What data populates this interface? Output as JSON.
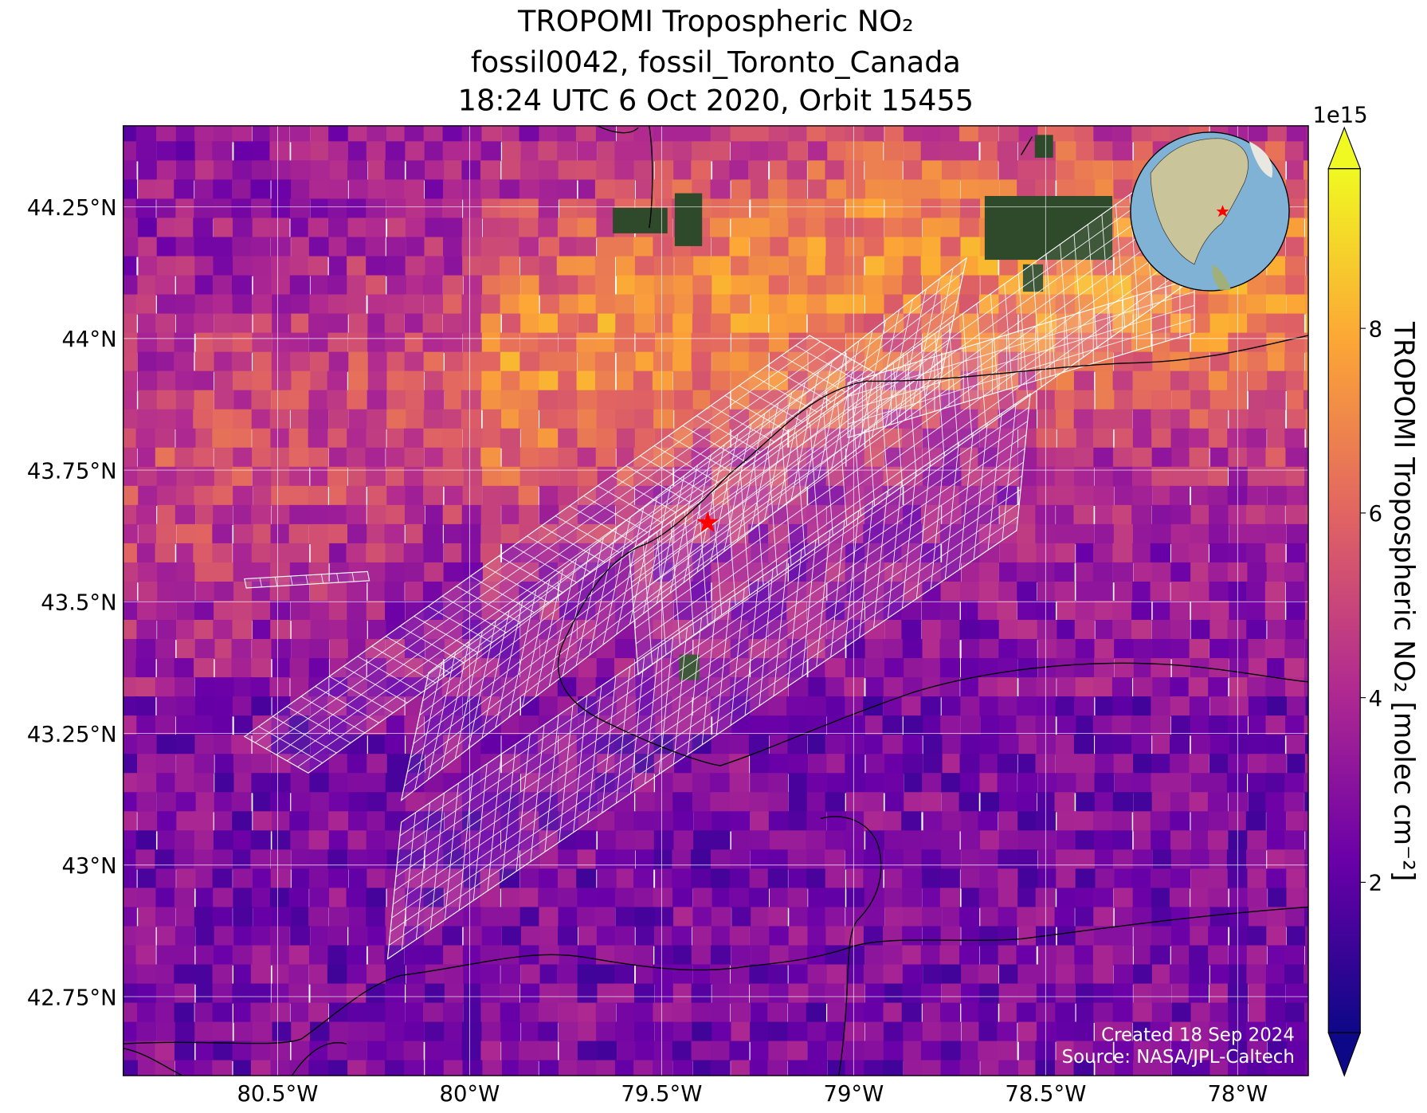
{
  "chart_data": {
    "type": "map",
    "title": [
      "TROPOMI Tropospheric NO₂",
      "fossil0042, fossil_Toronto_Canada",
      "18:24 UTC 6 Oct 2020, Orbit 15455"
    ],
    "xlim": [
      -80.902,
      -77.816
    ],
    "ylim": [
      42.6,
      44.404
    ],
    "xticks": [
      {
        "value": -80.5,
        "label": "80.5°W"
      },
      {
        "value": -80,
        "label": "80°W"
      },
      {
        "value": -79.5,
        "label": "79.5°W"
      },
      {
        "value": -79,
        "label": "79°W"
      },
      {
        "value": -78.5,
        "label": "78.5°W"
      },
      {
        "value": -78,
        "label": "78°W"
      }
    ],
    "yticks": [
      {
        "value": 42.75,
        "label": "42.75°N"
      },
      {
        "value": 43,
        "label": "43°N"
      },
      {
        "value": 43.25,
        "label": "43.25°N"
      },
      {
        "value": 43.5,
        "label": "43.5°N"
      },
      {
        "value": 43.75,
        "label": "43.75°N"
      },
      {
        "value": 44,
        "label": "44°N"
      },
      {
        "value": 44.25,
        "label": "44.25°N"
      }
    ],
    "grid": true,
    "target": {
      "lon": -79.38,
      "lat": 43.65,
      "color": "#ff0000"
    },
    "colorbar": {
      "label": "TROPOMI Tropospheric NO₂ [molec cm⁻²]",
      "colormap": "plasma",
      "clim": [
        0.37,
        9.73
      ],
      "ticks": [
        2,
        4,
        6,
        8
      ],
      "offset_label": "1e15",
      "extend": "both"
    },
    "footer": [
      "Created 18 Sep 2024",
      "Source: NASA/JPL-Caltech"
    ]
  }
}
